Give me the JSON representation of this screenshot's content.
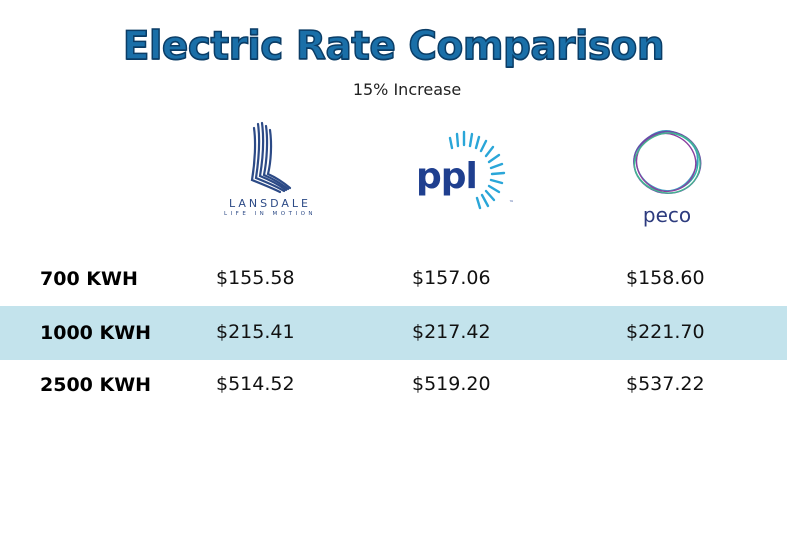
{
  "title": "Electric Rate Comparison",
  "subtitle": "15% Increase",
  "logos": {
    "lansdale": {
      "name": "LANSDALE",
      "tagline": "LIFE IN MOTION"
    },
    "ppl": {
      "name": "ppl",
      "mark": "™"
    },
    "peco": {
      "name": "peco"
    }
  },
  "rows": [
    {
      "label": "700 KWH",
      "lansdale": "$155.58",
      "ppl": "$157.06",
      "peco": "$158.60"
    },
    {
      "label": "1000 KWH",
      "lansdale": "$215.41",
      "ppl": "$217.42",
      "peco": "$221.70"
    },
    {
      "label": "2500 KWH",
      "lansdale": "$514.52",
      "ppl": "$519.20",
      "peco": "$537.22"
    }
  ],
  "colors": {
    "title_fill": "#1a6fa8",
    "title_outline": "#0b3d66",
    "highlight_row": "#c3e3ec",
    "lansdale_blue": "#2c4a86",
    "ppl_navy": "#1f3f8f",
    "ppl_cyan": "#2aa6d8",
    "peco_navy": "#2d3b7e"
  }
}
